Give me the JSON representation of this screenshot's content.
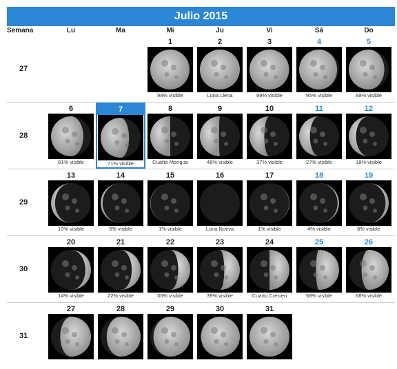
{
  "calendar": {
    "title": "Julio 2015",
    "headers": [
      "Semana",
      "Lu",
      "Ma",
      "Mi",
      "Ju",
      "Vi",
      "Sá",
      "Do"
    ],
    "weeks": [
      {
        "week": "27",
        "days": [
          null,
          null,
          {
            "day": "1",
            "label": "98% visible",
            "phase": 0.98,
            "waxing": false
          },
          {
            "day": "2",
            "label": "Luna Llena",
            "phase": 1.0,
            "waxing": false
          },
          {
            "day": "3",
            "label": "99% visible",
            "phase": 0.99,
            "waxing": false
          },
          {
            "day": "4",
            "label": "95% visible",
            "phase": 0.95,
            "waxing": false,
            "weekend": true
          },
          {
            "day": "5",
            "label": "89% visible",
            "phase": 0.89,
            "waxing": false,
            "weekend": true
          }
        ]
      },
      {
        "week": "28",
        "days": [
          {
            "day": "6",
            "label": "81% visible",
            "phase": 0.81,
            "waxing": false
          },
          {
            "day": "7",
            "label": "71% visible",
            "phase": 0.71,
            "waxing": false,
            "selected": true
          },
          {
            "day": "8",
            "label": "Cuarto Mengua",
            "phase": 0.5,
            "waxing": false
          },
          {
            "day": "9",
            "label": "48% visible",
            "phase": 0.48,
            "waxing": false
          },
          {
            "day": "10",
            "label": "37% visible",
            "phase": 0.37,
            "waxing": false
          },
          {
            "day": "11",
            "label": "27% visible",
            "phase": 0.27,
            "waxing": false,
            "weekend": true
          },
          {
            "day": "12",
            "label": "18% visible",
            "phase": 0.18,
            "waxing": false,
            "weekend": true
          }
        ]
      },
      {
        "week": "29",
        "days": [
          {
            "day": "13",
            "label": "10% visible",
            "phase": 0.1,
            "waxing": false
          },
          {
            "day": "14",
            "label": "5% visible",
            "phase": 0.05,
            "waxing": false
          },
          {
            "day": "15",
            "label": "1% visible",
            "phase": 0.01,
            "waxing": false
          },
          {
            "day": "16",
            "label": "Luna Nueva",
            "phase": 0.0,
            "waxing": true
          },
          {
            "day": "17",
            "label": "1% visible",
            "phase": 0.01,
            "waxing": true
          },
          {
            "day": "18",
            "label": "4% visible",
            "phase": 0.04,
            "waxing": true,
            "weekend": true
          },
          {
            "day": "19",
            "label": "8% visible",
            "phase": 0.08,
            "waxing": true,
            "weekend": true
          }
        ]
      },
      {
        "week": "30",
        "days": [
          {
            "day": "20",
            "label": "14% visible",
            "phase": 0.14,
            "waxing": true
          },
          {
            "day": "21",
            "label": "22% visible",
            "phase": 0.22,
            "waxing": true
          },
          {
            "day": "22",
            "label": "30% visible",
            "phase": 0.3,
            "waxing": true
          },
          {
            "day": "23",
            "label": "39% visible",
            "phase": 0.39,
            "waxing": true
          },
          {
            "day": "24",
            "label": "Cuarto Crecien",
            "phase": 0.5,
            "waxing": true
          },
          {
            "day": "25",
            "label": "58% visible",
            "phase": 0.58,
            "waxing": true,
            "weekend": true
          },
          {
            "day": "26",
            "label": "68% visible",
            "phase": 0.68,
            "waxing": true,
            "weekend": true
          }
        ]
      },
      {
        "week": "31",
        "days": [
          {
            "day": "27",
            "label": "",
            "phase": 0.77,
            "waxing": true
          },
          {
            "day": "28",
            "label": "",
            "phase": 0.85,
            "waxing": true
          },
          {
            "day": "29",
            "label": "",
            "phase": 0.92,
            "waxing": true
          },
          {
            "day": "30",
            "label": "",
            "phase": 0.97,
            "waxing": true
          },
          {
            "day": "31",
            "label": "",
            "phase": 1.0,
            "waxing": true
          },
          null,
          null
        ]
      }
    ]
  },
  "colors": {
    "accent": "#2b87d6",
    "moon_lit": "#bdbdbd",
    "sky": "#000000"
  }
}
